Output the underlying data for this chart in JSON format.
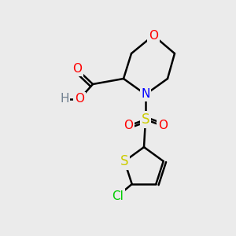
{
  "bg_color": "#ebebeb",
  "bond_color": "#000000",
  "bond_lw": 1.8,
  "atom_colors": {
    "O": "#ff0000",
    "N": "#0000ff",
    "S": "#cccc00",
    "Cl": "#00cc00",
    "H": "#708090",
    "C": "#000000"
  },
  "font_size": 11,
  "font_size_small": 9
}
